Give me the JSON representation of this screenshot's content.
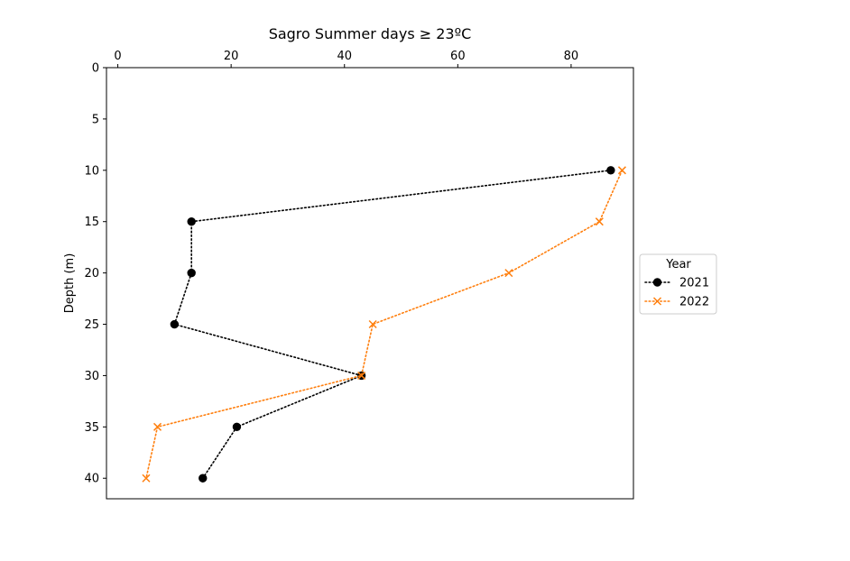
{
  "chart_data": {
    "type": "line",
    "title": "Sagro Summer days ≥ 23ºC",
    "xlabel": "",
    "ylabel": "Depth (m)",
    "x_axis_position": "top",
    "y_inverted": true,
    "xlim": [
      -2,
      91
    ],
    "ylim": [
      42,
      0
    ],
    "x_ticks": [
      0,
      20,
      40,
      60,
      80
    ],
    "y_ticks": [
      0,
      5,
      10,
      15,
      20,
      25,
      30,
      35,
      40
    ],
    "grid": false,
    "legend": {
      "title": "Year",
      "placement": "right, outside, vertically centered"
    },
    "series": [
      {
        "name": "2021",
        "color": "#000000",
        "linestyle": "dotted",
        "marker": "circle",
        "points": [
          {
            "x": 87,
            "y": 10
          },
          {
            "x": 13,
            "y": 15
          },
          {
            "x": 13,
            "y": 20
          },
          {
            "x": 10,
            "y": 25
          },
          {
            "x": 43,
            "y": 30
          },
          {
            "x": 21,
            "y": 35
          },
          {
            "x": 15,
            "y": 40
          }
        ]
      },
      {
        "name": "2022",
        "color": "#ff7f0e",
        "linestyle": "dotted",
        "marker": "x",
        "points": [
          {
            "x": 89,
            "y": 10
          },
          {
            "x": 85,
            "y": 15
          },
          {
            "x": 69,
            "y": 20
          },
          {
            "x": 45,
            "y": 25
          },
          {
            "x": 43,
            "y": 30
          },
          {
            "x": 7,
            "y": 35
          },
          {
            "x": 5,
            "y": 40
          }
        ]
      }
    ]
  }
}
